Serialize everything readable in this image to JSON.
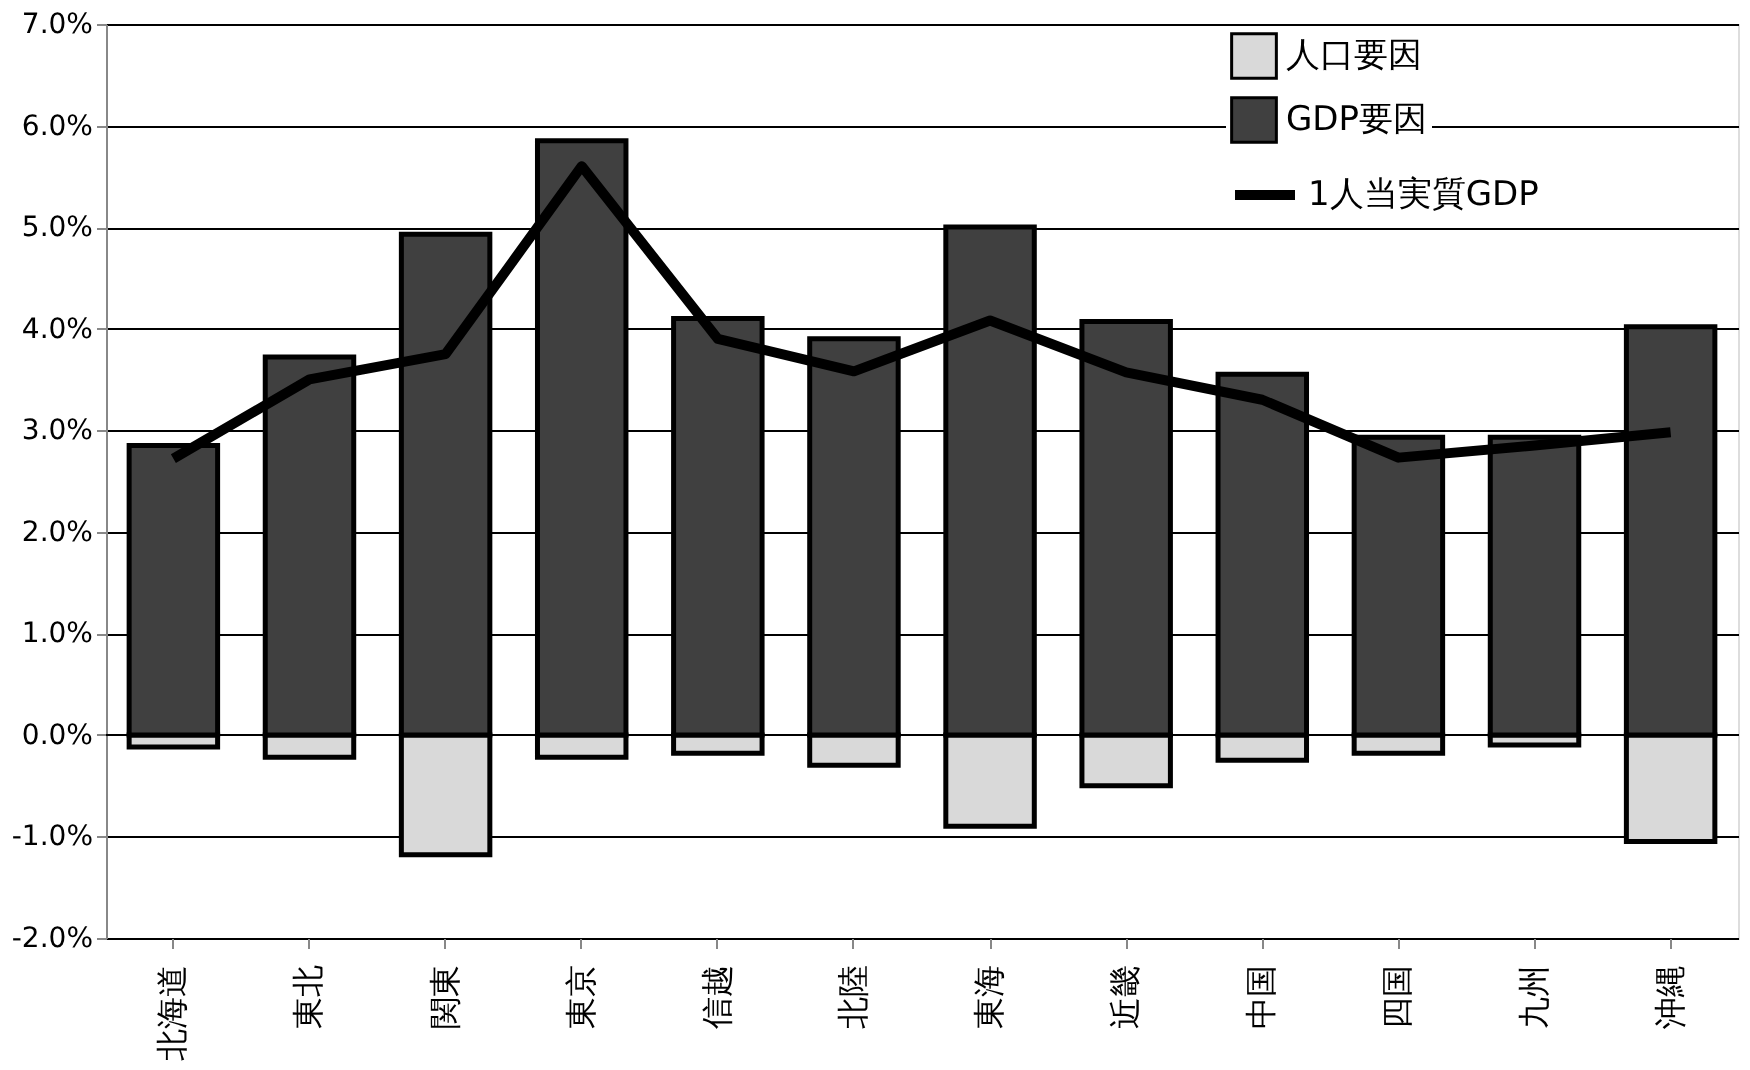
{
  "chart_data": {
    "type": "bar",
    "stacked": true,
    "categories": [
      "北海道",
      "東北",
      "関東",
      "東京",
      "信越",
      "北陸",
      "東海",
      "近畿",
      "中国",
      "四国",
      "九州",
      "沖縄"
    ],
    "series": [
      {
        "name": "人口要因",
        "color": "#d9d9d9",
        "values": [
          -0.12,
          -0.22,
          -1.18,
          -0.22,
          -0.18,
          -0.3,
          -0.9,
          -0.5,
          -0.25,
          -0.18,
          -0.1,
          -1.05
        ]
      },
      {
        "name": "GDP要因",
        "color": "#404040",
        "values": [
          2.85,
          3.72,
          4.93,
          5.85,
          4.1,
          3.9,
          5.0,
          4.07,
          3.55,
          2.93,
          2.93,
          4.02
        ]
      },
      {
        "name": "1人当実質GDP",
        "type": "line",
        "color": "#000000",
        "values": [
          2.72,
          3.5,
          3.75,
          5.6,
          3.9,
          3.58,
          4.08,
          3.57,
          3.3,
          2.73,
          2.85,
          2.98
        ]
      }
    ],
    "ylim": [
      -2,
      7
    ],
    "yticks": [
      {
        "value": -2,
        "label": "-2.0%"
      },
      {
        "value": -1,
        "label": "-1.0%"
      },
      {
        "value": 0,
        "label": "0.0%"
      },
      {
        "value": 1,
        "label": "1.0%"
      },
      {
        "value": 2,
        "label": "2.0%"
      },
      {
        "value": 3,
        "label": "3.0%"
      },
      {
        "value": 4,
        "label": "4.0%"
      },
      {
        "value": 5,
        "label": "5.0%"
      },
      {
        "value": 6,
        "label": "6.0%"
      },
      {
        "value": 7,
        "label": "7.0%"
      }
    ],
    "grid": "y",
    "legend": "top right",
    "marker": "none",
    "line_style": "solid"
  }
}
